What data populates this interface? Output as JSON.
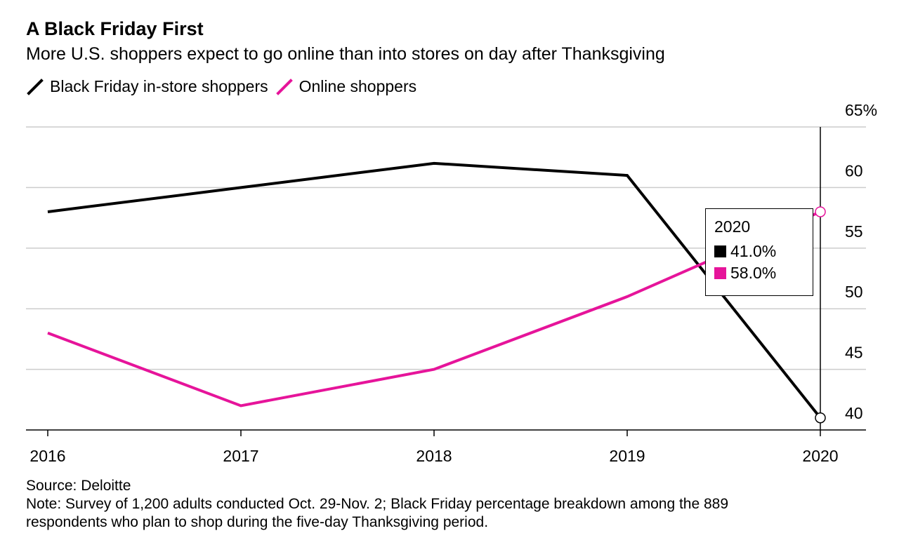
{
  "title": "A Black Friday First",
  "subtitle": "More U.S. shoppers expect to go online than into stores on day after Thanksgiving",
  "legend": [
    {
      "label": "Black Friday in-store shoppers",
      "color": "#000000"
    },
    {
      "label": "Online shoppers",
      "color": "#e6149a"
    }
  ],
  "tooltip": {
    "year": "2020",
    "instore_value": "41.0%",
    "online_value": "58.0%"
  },
  "footer": {
    "source": "Source: Deloitte",
    "note_line1": "Note: Survey of 1,200 adults conducted Oct. 29-Nov. 2; Black Friday percentage breakdown among the 889",
    "note_line2": "respondents who plan to shop during the five-day Thanksgiving period."
  },
  "chart_data": {
    "type": "line",
    "x": [
      "2016",
      "2017",
      "2018",
      "2019",
      "2020"
    ],
    "series": [
      {
        "name": "Black Friday in-store shoppers",
        "values": [
          58.0,
          60.0,
          62.0,
          61.0,
          41.0
        ],
        "color": "#000000"
      },
      {
        "name": "Online shoppers",
        "values": [
          48.0,
          42.0,
          45.0,
          51.0,
          58.0
        ],
        "color": "#e6149a"
      }
    ],
    "ylim": [
      40,
      65
    ],
    "yticks": [
      40,
      45,
      50,
      55,
      60,
      65
    ],
    "ytick_labels": [
      "40",
      "45",
      "50",
      "55",
      "60",
      "65%"
    ],
    "y_axis_position": "right",
    "grid": true,
    "legend_position": "top-left"
  }
}
